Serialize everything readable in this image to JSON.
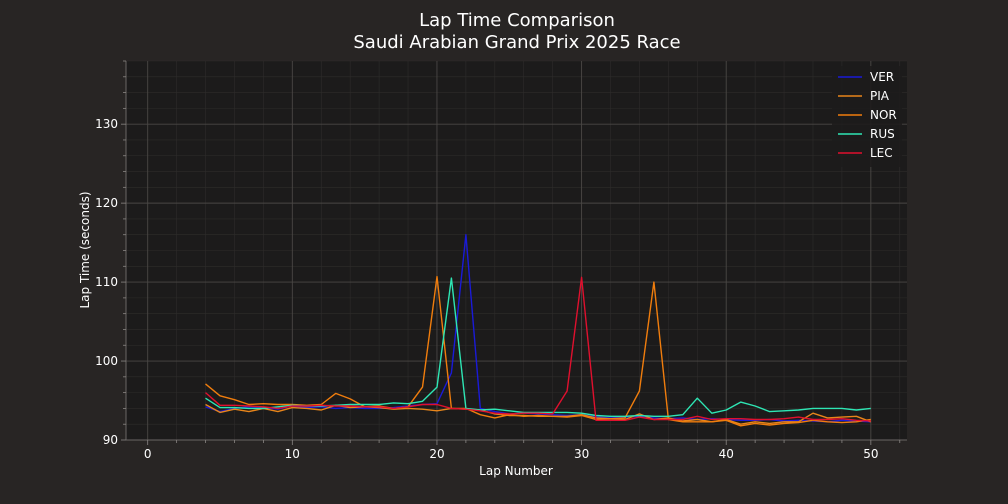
{
  "chart_data": {
    "type": "line",
    "title": "Lap Time Comparison",
    "subtitle": "Saudi Arabian Grand Prix 2025 Race",
    "xlabel": "Lap Number",
    "ylabel": "Lap Time (seconds)",
    "xlim": [
      -1.5,
      52.5
    ],
    "ylim": [
      90,
      138
    ],
    "xticks": [
      0,
      10,
      20,
      30,
      40,
      50
    ],
    "yticks": [
      90,
      100,
      110,
      120,
      130
    ],
    "grid": true,
    "legend_position": "top-right",
    "series": [
      {
        "name": "VER",
        "color": "#1a1ad8",
        "x": [
          4,
          5,
          6,
          7,
          8,
          9,
          10,
          11,
          12,
          13,
          14,
          15,
          16,
          17,
          18,
          19,
          20,
          21,
          22,
          23,
          24,
          25,
          26,
          27,
          28,
          29,
          30,
          31,
          32,
          33,
          34,
          35,
          36,
          37,
          38,
          39,
          40,
          41,
          42,
          43,
          44,
          45,
          46,
          47,
          48,
          49,
          50
        ],
        "y": [
          94.2,
          93.6,
          94.0,
          94.2,
          94.1,
          93.9,
          94.3,
          94.1,
          94.2,
          94.0,
          94.1,
          94.0,
          94.0,
          94.1,
          94.3,
          94.5,
          94.6,
          98.5,
          116.0,
          94.0,
          93.6,
          93.3,
          93.4,
          93.3,
          93.2,
          93.1,
          93.2,
          92.9,
          92.8,
          92.9,
          93.0,
          92.8,
          92.7,
          92.8,
          92.6,
          92.7,
          92.6,
          92.5,
          92.5,
          92.6,
          92.4,
          92.5,
          92.4,
          92.3,
          92.5,
          92.4,
          92.3
        ]
      },
      {
        "name": "PIA",
        "color": "#e8851a",
        "x": [
          4,
          5,
          6,
          7,
          8,
          9,
          10,
          11,
          12,
          13,
          14,
          15,
          16,
          17,
          18,
          19,
          20,
          21,
          22,
          23,
          24,
          25,
          26,
          27,
          28,
          29,
          30,
          31,
          32,
          33,
          34,
          35,
          36,
          37,
          38,
          39,
          40,
          41,
          42,
          43,
          44,
          45,
          46,
          47,
          48,
          49,
          50
        ],
        "y": [
          94.5,
          93.5,
          93.9,
          93.6,
          94.0,
          93.6,
          94.1,
          94.0,
          93.8,
          94.4,
          94.1,
          94.2,
          94.1,
          93.9,
          94.0,
          93.9,
          93.7,
          94.0,
          93.9,
          93.8,
          93.3,
          93.1,
          93.1,
          93.0,
          93.0,
          93.0,
          93.2,
          92.8,
          92.7,
          92.6,
          93.3,
          92.6,
          92.8,
          92.4,
          92.6,
          92.3,
          92.6,
          92.0,
          92.3,
          92.1,
          92.3,
          92.3,
          93.4,
          92.8,
          92.9,
          93.0,
          92.3
        ]
      },
      {
        "name": "NOR",
        "color": "#f07d0d",
        "x": [
          4,
          5,
          6,
          7,
          8,
          9,
          10,
          11,
          12,
          13,
          14,
          15,
          16,
          17,
          18,
          19,
          20,
          21,
          22,
          23,
          24,
          25,
          26,
          27,
          28,
          29,
          30,
          31,
          32,
          33,
          34,
          35,
          36,
          37,
          38,
          39,
          40,
          41,
          42,
          43,
          44,
          45,
          46,
          47,
          48,
          49,
          50
        ],
        "y": [
          97.1,
          95.6,
          95.1,
          94.5,
          94.6,
          94.5,
          94.5,
          94.4,
          94.5,
          95.9,
          95.2,
          94.2,
          94.3,
          94.0,
          94.2,
          96.7,
          110.7,
          94.0,
          94.0,
          93.2,
          92.8,
          93.2,
          93.0,
          93.1,
          93.0,
          92.9,
          93.1,
          92.6,
          92.7,
          92.8,
          96.2,
          110.0,
          92.6,
          92.3,
          92.3,
          92.3,
          92.5,
          91.8,
          92.1,
          91.9,
          92.1,
          92.2,
          92.5,
          92.3,
          92.2,
          92.3,
          92.6
        ]
      },
      {
        "name": "RUS",
        "color": "#2ee6b4",
        "x": [
          4,
          5,
          6,
          7,
          8,
          9,
          10,
          11,
          12,
          13,
          14,
          15,
          16,
          17,
          18,
          19,
          20,
          21,
          22,
          23,
          24,
          25,
          26,
          27,
          28,
          29,
          30,
          31,
          32,
          33,
          34,
          35,
          36,
          37,
          38,
          39,
          40,
          41,
          42,
          43,
          44,
          45,
          46,
          47,
          48,
          49,
          50
        ],
        "y": [
          95.3,
          94.1,
          94.1,
          94.0,
          94.0,
          94.2,
          94.4,
          94.3,
          94.3,
          94.4,
          94.5,
          94.5,
          94.5,
          94.7,
          94.6,
          94.9,
          96.7,
          110.5,
          94.0,
          93.8,
          93.9,
          93.7,
          93.5,
          93.5,
          93.5,
          93.5,
          93.4,
          93.1,
          93.0,
          93.0,
          93.1,
          93.0,
          93.0,
          93.2,
          95.3,
          93.4,
          93.8,
          94.8,
          94.3,
          93.6,
          93.7,
          93.8,
          94.0,
          94.0,
          94.0,
          93.8,
          94.0
        ]
      },
      {
        "name": "LEC",
        "color": "#e0102e",
        "x": [
          4,
          5,
          6,
          7,
          8,
          9,
          10,
          11,
          12,
          13,
          14,
          15,
          16,
          17,
          18,
          19,
          20,
          21,
          22,
          23,
          24,
          25,
          26,
          27,
          28,
          29,
          30,
          31,
          32,
          33,
          34,
          35,
          36,
          37,
          38,
          39,
          40,
          41,
          42,
          43,
          44,
          45,
          46,
          47,
          48,
          49,
          50
        ],
        "y": [
          96.0,
          94.4,
          94.4,
          94.3,
          94.2,
          94.0,
          94.3,
          94.3,
          94.4,
          94.3,
          94.3,
          94.2,
          94.2,
          94.0,
          94.2,
          94.5,
          94.5,
          94.0,
          93.9,
          93.7,
          93.4,
          93.3,
          93.4,
          93.4,
          93.3,
          96.2,
          110.6,
          92.5,
          92.5,
          92.5,
          92.9,
          92.6,
          92.6,
          92.6,
          93.0,
          92.6,
          92.7,
          92.7,
          92.6,
          92.6,
          92.7,
          92.9,
          92.6,
          92.6,
          92.7,
          92.5,
          92.4
        ]
      }
    ]
  }
}
